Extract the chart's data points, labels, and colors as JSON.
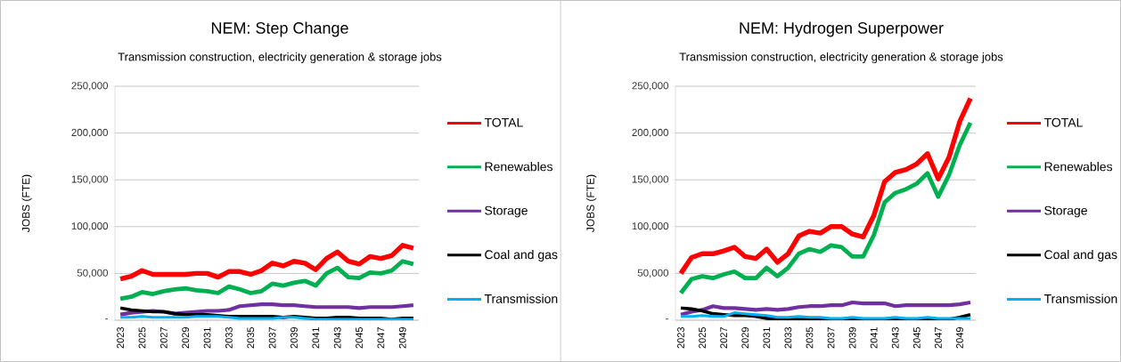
{
  "chart_data": [
    {
      "type": "line",
      "title": "NEM: Step Change",
      "subtitle": "Transmission construction, electricity generation & storage jobs",
      "ylabel": "JOBS (FTE)",
      "categories": [
        "2023",
        null,
        "2025",
        null,
        "2027",
        null,
        "2029",
        null,
        "2031",
        null,
        "2033",
        null,
        "2035",
        null,
        "2037",
        null,
        "2039",
        null,
        "2041",
        null,
        "2043",
        null,
        "2045",
        null,
        "2047",
        null,
        "2049",
        null
      ],
      "series": [
        {
          "name": "TOTAL",
          "color": "#ff0000",
          "values": [
            44000,
            47000,
            53000,
            49000,
            49000,
            49000,
            49000,
            50000,
            50000,
            46000,
            52000,
            52000,
            49000,
            53000,
            61000,
            58000,
            63000,
            61000,
            54000,
            66000,
            73000,
            63000,
            60000,
            68000,
            66000,
            69000,
            80000,
            77000
          ]
        },
        {
          "name": "Renewables",
          "color": "#00b050",
          "values": [
            23000,
            25000,
            30000,
            28000,
            31000,
            33000,
            34000,
            32000,
            31000,
            29000,
            36000,
            33000,
            29000,
            31000,
            39000,
            37000,
            40000,
            42000,
            37000,
            50000,
            56000,
            46000,
            45000,
            51000,
            50000,
            53000,
            63000,
            60000
          ]
        },
        {
          "name": "Storage",
          "color": "#7030a0",
          "values": [
            6000,
            8000,
            9000,
            10000,
            9000,
            7000,
            8000,
            9000,
            10000,
            10000,
            11000,
            15000,
            16000,
            17000,
            17000,
            16000,
            16000,
            15000,
            14000,
            14000,
            14000,
            14000,
            13000,
            14000,
            14000,
            14000,
            15000,
            16000
          ]
        },
        {
          "name": "Coal and gas",
          "color": "#000000",
          "values": [
            13000,
            11000,
            10000,
            9000,
            9000,
            7000,
            6000,
            6000,
            6000,
            5000,
            4000,
            4000,
            4000,
            4000,
            4000,
            3000,
            4000,
            3000,
            2000,
            2000,
            3000,
            3000,
            2000,
            2000,
            2000,
            1000,
            2000,
            2000
          ]
        },
        {
          "name": "Transmission",
          "color": "#00b0f0",
          "values": [
            3000,
            3000,
            4000,
            3000,
            3000,
            3000,
            3000,
            4000,
            4000,
            4000,
            3000,
            2000,
            2000,
            2000,
            2000,
            3000,
            3000,
            2000,
            1000,
            1000,
            1000,
            1000,
            1000,
            1000,
            1000,
            1000,
            1000,
            1000
          ]
        }
      ],
      "ylim": [
        0,
        250000
      ],
      "yticks": [
        {
          "value": 0,
          "label": "-"
        },
        {
          "value": 50000,
          "label": "50,000"
        },
        {
          "value": 100000,
          "label": "100,000"
        },
        {
          "value": 150000,
          "label": "150,000"
        },
        {
          "value": 200000,
          "label": "200,000"
        },
        {
          "value": 250000,
          "label": "250,000"
        }
      ],
      "grid": "y",
      "legend": "right"
    },
    {
      "type": "line",
      "title": "NEM: Hydrogen Superpower",
      "subtitle": "Transmission construction, electricity generation & storage jobs",
      "ylabel": "JOBS (FTE)",
      "categories": [
        "2023",
        null,
        "2025",
        null,
        "2027",
        null,
        "2029",
        null,
        "2031",
        null,
        "2033",
        null,
        "2035",
        null,
        "2037",
        null,
        "2039",
        null,
        "2041",
        null,
        "2043",
        null,
        "2045",
        null,
        "2047",
        null,
        "2049",
        null
      ],
      "series": [
        {
          "name": "TOTAL",
          "color": "#ff0000",
          "values": [
            50000,
            67000,
            71000,
            71000,
            74000,
            78000,
            68000,
            66000,
            76000,
            62000,
            71000,
            90000,
            95000,
            93000,
            100000,
            100000,
            92000,
            89000,
            112000,
            148000,
            158000,
            161000,
            167000,
            178000,
            151000,
            174000,
            212000,
            237000
          ]
        },
        {
          "name": "Renewables",
          "color": "#00b050",
          "values": [
            29000,
            44000,
            47000,
            45000,
            49000,
            52000,
            45000,
            45000,
            56000,
            47000,
            56000,
            71000,
            76000,
            73000,
            80000,
            78000,
            68000,
            68000,
            91000,
            126000,
            136000,
            140000,
            146000,
            157000,
            132000,
            155000,
            187000,
            211000
          ]
        },
        {
          "name": "Storage",
          "color": "#7030a0",
          "values": [
            6000,
            9000,
            11000,
            15000,
            13000,
            13000,
            12000,
            11000,
            12000,
            11000,
            12000,
            14000,
            15000,
            15000,
            16000,
            16000,
            19000,
            18000,
            18000,
            18000,
            15000,
            16000,
            16000,
            16000,
            16000,
            16000,
            17000,
            19000
          ]
        },
        {
          "name": "Coal and gas",
          "color": "#000000",
          "values": [
            13000,
            12000,
            10000,
            7000,
            6000,
            5000,
            5000,
            4000,
            2000,
            1000,
            1000,
            1000,
            1000,
            1000,
            1000,
            1000,
            2000,
            1000,
            1000,
            1000,
            2000,
            1000,
            1000,
            1000,
            1000,
            1000,
            3000,
            6000
          ]
        },
        {
          "name": "Transmission",
          "color": "#00b0f0",
          "values": [
            4000,
            4000,
            5000,
            4000,
            4000,
            8000,
            7000,
            6000,
            5000,
            3000,
            3000,
            4000,
            3000,
            3000,
            2000,
            2000,
            3000,
            2000,
            2000,
            2000,
            3000,
            2000,
            2000,
            3000,
            2000,
            2000,
            2000,
            2000
          ]
        }
      ],
      "ylim": [
        0,
        250000
      ],
      "yticks": [
        {
          "value": 0,
          "label": "-"
        },
        {
          "value": 50000,
          "label": "50,000"
        },
        {
          "value": 100000,
          "label": "100,000"
        },
        {
          "value": 150000,
          "label": "150,000"
        },
        {
          "value": 200000,
          "label": "200,000"
        },
        {
          "value": 250000,
          "label": "250,000"
        }
      ],
      "grid": "y",
      "legend": "right"
    }
  ]
}
